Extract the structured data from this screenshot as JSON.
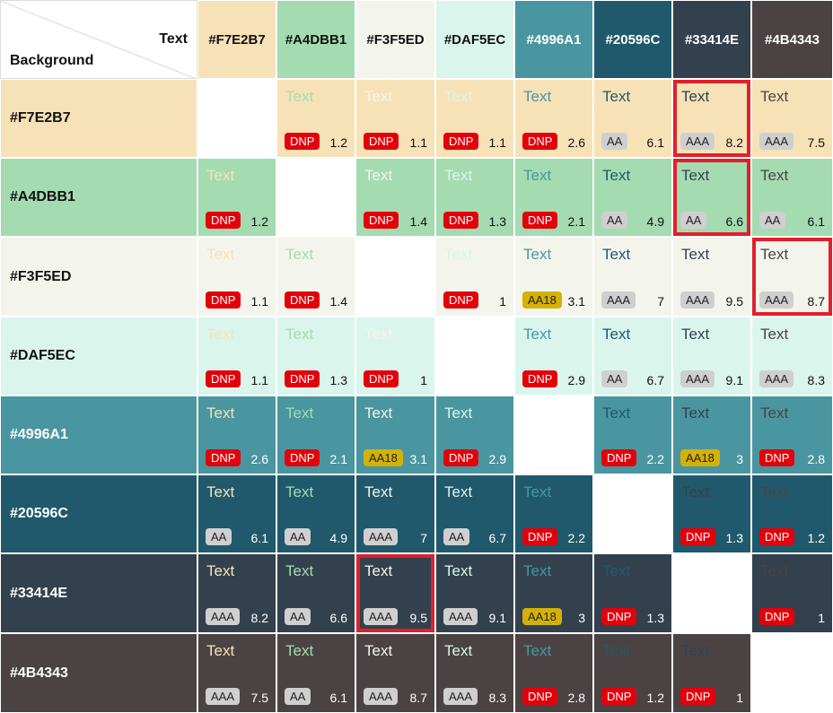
{
  "corner": {
    "text_label": "Text",
    "background_label": "Background"
  },
  "colors": [
    "#F7E2B7",
    "#A4DBB1",
    "#F3F5ED",
    "#DAF5EC",
    "#4996A1",
    "#20596C",
    "#33414E",
    "#4B4343"
  ],
  "sample_text": "Text",
  "highlight_color": "#e0202a",
  "rows": [
    {
      "label": "#F7E2B7",
      "cells": [
        null,
        {
          "badge": "DNP",
          "ratio": "1.2"
        },
        {
          "badge": "DNP",
          "ratio": "1.1"
        },
        {
          "badge": "DNP",
          "ratio": "1.1"
        },
        {
          "badge": "DNP",
          "ratio": "2.6"
        },
        {
          "badge": "AA",
          "ratio": "6.1"
        },
        {
          "badge": "AAA",
          "ratio": "8.2",
          "highlight": true
        },
        {
          "badge": "AAA",
          "ratio": "7.5"
        }
      ]
    },
    {
      "label": "#A4DBB1",
      "cells": [
        {
          "badge": "DNP",
          "ratio": "1.2"
        },
        null,
        {
          "badge": "DNP",
          "ratio": "1.4"
        },
        {
          "badge": "DNP",
          "ratio": "1.3"
        },
        {
          "badge": "DNP",
          "ratio": "2.1"
        },
        {
          "badge": "AA",
          "ratio": "4.9"
        },
        {
          "badge": "AA",
          "ratio": "6.6",
          "highlight": true
        },
        {
          "badge": "AA",
          "ratio": "6.1"
        }
      ]
    },
    {
      "label": "#F3F5ED",
      "cells": [
        {
          "badge": "DNP",
          "ratio": "1.1"
        },
        {
          "badge": "DNP",
          "ratio": "1.4"
        },
        null,
        {
          "badge": "DNP",
          "ratio": "1"
        },
        {
          "badge": "AA18",
          "ratio": "3.1"
        },
        {
          "badge": "AAA",
          "ratio": "7"
        },
        {
          "badge": "AAA",
          "ratio": "9.5"
        },
        {
          "badge": "AAA",
          "ratio": "8.7",
          "highlight": true
        }
      ]
    },
    {
      "label": "#DAF5EC",
      "cells": [
        {
          "badge": "DNP",
          "ratio": "1.1"
        },
        {
          "badge": "DNP",
          "ratio": "1.3"
        },
        {
          "badge": "DNP",
          "ratio": "1"
        },
        null,
        {
          "badge": "DNP",
          "ratio": "2.9"
        },
        {
          "badge": "AA",
          "ratio": "6.7"
        },
        {
          "badge": "AAA",
          "ratio": "9.1"
        },
        {
          "badge": "AAA",
          "ratio": "8.3"
        }
      ]
    },
    {
      "label": "#4996A1",
      "cells": [
        {
          "badge": "DNP",
          "ratio": "2.6"
        },
        {
          "badge": "DNP",
          "ratio": "2.1"
        },
        {
          "badge": "AA18",
          "ratio": "3.1"
        },
        {
          "badge": "DNP",
          "ratio": "2.9"
        },
        null,
        {
          "badge": "DNP",
          "ratio": "2.2"
        },
        {
          "badge": "AA18",
          "ratio": "3"
        },
        {
          "badge": "DNP",
          "ratio": "2.8"
        }
      ]
    },
    {
      "label": "#20596C",
      "cells": [
        {
          "badge": "AA",
          "ratio": "6.1"
        },
        {
          "badge": "AA",
          "ratio": "4.9"
        },
        {
          "badge": "AAA",
          "ratio": "7"
        },
        {
          "badge": "AA",
          "ratio": "6.7"
        },
        {
          "badge": "DNP",
          "ratio": "2.2"
        },
        null,
        {
          "badge": "DNP",
          "ratio": "1.3"
        },
        {
          "badge": "DNP",
          "ratio": "1.2"
        }
      ]
    },
    {
      "label": "#33414E",
      "cells": [
        {
          "badge": "AAA",
          "ratio": "8.2"
        },
        {
          "badge": "AA",
          "ratio": "6.6"
        },
        {
          "badge": "AAA",
          "ratio": "9.5",
          "highlight": true
        },
        {
          "badge": "AAA",
          "ratio": "9.1"
        },
        {
          "badge": "AA18",
          "ratio": "3"
        },
        {
          "badge": "DNP",
          "ratio": "1.3"
        },
        null,
        {
          "badge": "DNP",
          "ratio": "1"
        }
      ]
    },
    {
      "label": "#4B4343",
      "cells": [
        {
          "badge": "AAA",
          "ratio": "7.5"
        },
        {
          "badge": "AA",
          "ratio": "6.1"
        },
        {
          "badge": "AAA",
          "ratio": "8.7"
        },
        {
          "badge": "AAA",
          "ratio": "8.3"
        },
        {
          "badge": "DNP",
          "ratio": "2.8"
        },
        {
          "badge": "DNP",
          "ratio": "1.2"
        },
        {
          "badge": "DNP",
          "ratio": "1"
        },
        null
      ]
    }
  ]
}
